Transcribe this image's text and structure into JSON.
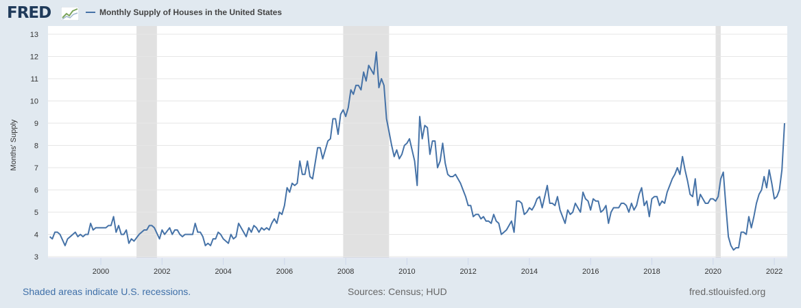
{
  "header": {
    "logo": "FRED",
    "legend_label": "Monthly Supply of Houses in the United States"
  },
  "footer": {
    "recession_note": "Shaded areas indicate U.S. recessions.",
    "sources": "Sources: Census; HUD",
    "url": "fred.stlouisfed.org"
  },
  "chart_data": {
    "type": "line",
    "title": "",
    "xlabel": "",
    "ylabel": "Months' Supply",
    "ylim": [
      3,
      13
    ],
    "xlim": [
      "1998-04",
      "2022-05"
    ],
    "grid": true,
    "legend": "top-left",
    "line_color": "#4572a7",
    "recession_color": "#e1e1e1",
    "y_ticks": [
      "3",
      "4",
      "5",
      "6",
      "7",
      "8",
      "9",
      "10",
      "11",
      "12",
      "13"
    ],
    "x_ticks": [
      "2000",
      "2002",
      "2004",
      "2006",
      "2008",
      "2010",
      "2012",
      "2014",
      "2016",
      "2018",
      "2020",
      "2022"
    ],
    "recessions": [
      [
        "2001-03",
        "2001-11"
      ],
      [
        "2007-12",
        "2009-06"
      ],
      [
        "2020-02",
        "2020-04"
      ]
    ],
    "series": [
      {
        "points": [
          [
            "1998-05",
            3.9
          ],
          [
            "1998-06",
            3.8
          ],
          [
            "1998-07",
            4.1
          ],
          [
            "1998-08",
            4.1
          ],
          [
            "1998-09",
            4.0
          ],
          [
            "1998-11",
            3.5
          ],
          [
            "1998-12",
            3.8
          ],
          [
            "1999-01",
            3.9
          ],
          [
            "1999-03",
            4.1
          ],
          [
            "1999-04",
            3.9
          ],
          [
            "1999-05",
            4.0
          ],
          [
            "1999-06",
            3.9
          ],
          [
            "1999-07",
            4.0
          ],
          [
            "1999-08",
            4.0
          ],
          [
            "1999-09",
            4.5
          ],
          [
            "1999-10",
            4.2
          ],
          [
            "1999-11",
            4.3
          ],
          [
            "2000-03",
            4.3
          ],
          [
            "2000-04",
            4.4
          ],
          [
            "2000-05",
            4.4
          ],
          [
            "2000-06",
            4.8
          ],
          [
            "2000-07",
            4.1
          ],
          [
            "2000-08",
            4.4
          ],
          [
            "2000-09",
            4.0
          ],
          [
            "2000-10",
            4.0
          ],
          [
            "2000-11",
            4.2
          ],
          [
            "2000-12",
            3.6
          ],
          [
            "2001-01",
            3.8
          ],
          [
            "2001-02",
            3.7
          ],
          [
            "2001-04",
            4.0
          ],
          [
            "2001-06",
            4.2
          ],
          [
            "2001-07",
            4.2
          ],
          [
            "2001-08",
            4.4
          ],
          [
            "2001-09",
            4.4
          ],
          [
            "2001-10",
            4.3
          ],
          [
            "2001-12",
            3.8
          ],
          [
            "2002-01",
            4.2
          ],
          [
            "2002-02",
            4.0
          ],
          [
            "2002-04",
            4.3
          ],
          [
            "2002-05",
            4.0
          ],
          [
            "2002-06",
            4.2
          ],
          [
            "2002-07",
            4.2
          ],
          [
            "2002-08",
            4.0
          ],
          [
            "2002-09",
            3.9
          ],
          [
            "2002-10",
            4.0
          ],
          [
            "2003-01",
            4.0
          ],
          [
            "2003-02",
            4.5
          ],
          [
            "2003-03",
            4.1
          ],
          [
            "2003-04",
            4.1
          ],
          [
            "2003-05",
            3.9
          ],
          [
            "2003-06",
            3.5
          ],
          [
            "2003-07",
            3.6
          ],
          [
            "2003-08",
            3.5
          ],
          [
            "2003-09",
            3.8
          ],
          [
            "2003-10",
            3.8
          ],
          [
            "2003-11",
            4.1
          ],
          [
            "2003-12",
            4.0
          ],
          [
            "2004-01",
            3.8
          ],
          [
            "2004-03",
            3.6
          ],
          [
            "2004-04",
            4.0
          ],
          [
            "2004-05",
            3.8
          ],
          [
            "2004-06",
            3.9
          ],
          [
            "2004-07",
            4.5
          ],
          [
            "2004-10",
            3.9
          ],
          [
            "2004-11",
            4.3
          ],
          [
            "2004-12",
            4.1
          ],
          [
            "2005-01",
            4.4
          ],
          [
            "2005-02",
            4.3
          ],
          [
            "2005-03",
            4.1
          ],
          [
            "2005-04",
            4.3
          ],
          [
            "2005-05",
            4.2
          ],
          [
            "2005-06",
            4.3
          ],
          [
            "2005-07",
            4.2
          ],
          [
            "2005-08",
            4.5
          ],
          [
            "2005-09",
            4.7
          ],
          [
            "2005-10",
            4.5
          ],
          [
            "2005-11",
            5.0
          ],
          [
            "2005-12",
            4.9
          ],
          [
            "2006-01",
            5.3
          ],
          [
            "2006-02",
            6.1
          ],
          [
            "2006-03",
            5.9
          ],
          [
            "2006-04",
            6.3
          ],
          [
            "2006-05",
            6.2
          ],
          [
            "2006-06",
            6.3
          ],
          [
            "2006-07",
            7.3
          ],
          [
            "2006-08",
            6.7
          ],
          [
            "2006-09",
            6.7
          ],
          [
            "2006-10",
            7.3
          ],
          [
            "2006-11",
            6.6
          ],
          [
            "2006-12",
            6.5
          ],
          [
            "2007-02",
            7.9
          ],
          [
            "2007-03",
            7.9
          ],
          [
            "2007-04",
            7.4
          ],
          [
            "2007-06",
            8.2
          ],
          [
            "2007-07",
            8.3
          ],
          [
            "2007-08",
            9.2
          ],
          [
            "2007-09",
            9.2
          ],
          [
            "2007-10",
            8.5
          ],
          [
            "2007-11",
            9.4
          ],
          [
            "2007-12",
            9.6
          ],
          [
            "2008-01",
            9.3
          ],
          [
            "2008-02",
            9.7
          ],
          [
            "2008-03",
            10.5
          ],
          [
            "2008-04",
            10.3
          ],
          [
            "2008-05",
            10.7
          ],
          [
            "2008-06",
            10.7
          ],
          [
            "2008-07",
            10.5
          ],
          [
            "2008-08",
            11.3
          ],
          [
            "2008-09",
            10.9
          ],
          [
            "2008-10",
            11.6
          ],
          [
            "2008-11",
            11.4
          ],
          [
            "2008-12",
            11.2
          ],
          [
            "2009-01",
            12.2
          ],
          [
            "2009-02",
            10.6
          ],
          [
            "2009-03",
            11.0
          ],
          [
            "2009-04",
            10.7
          ],
          [
            "2009-05",
            9.2
          ],
          [
            "2009-06",
            8.6
          ],
          [
            "2009-07",
            8.0
          ],
          [
            "2009-08",
            7.5
          ],
          [
            "2009-09",
            7.8
          ],
          [
            "2009-10",
            7.4
          ],
          [
            "2009-11",
            7.6
          ],
          [
            "2009-12",
            8.0
          ],
          [
            "2010-01",
            8.1
          ],
          [
            "2010-02",
            8.3
          ],
          [
            "2010-04",
            7.3
          ],
          [
            "2010-05",
            6.2
          ],
          [
            "2010-06",
            9.3
          ],
          [
            "2010-07",
            8.3
          ],
          [
            "2010-08",
            8.9
          ],
          [
            "2010-09",
            8.8
          ],
          [
            "2010-10",
            7.6
          ],
          [
            "2010-11",
            8.2
          ],
          [
            "2010-12",
            8.2
          ],
          [
            "2011-01",
            7.0
          ],
          [
            "2011-02",
            7.3
          ],
          [
            "2011-03",
            8.1
          ],
          [
            "2011-04",
            7.2
          ],
          [
            "2011-05",
            6.7
          ],
          [
            "2011-06",
            6.6
          ],
          [
            "2011-07",
            6.6
          ],
          [
            "2011-08",
            6.7
          ],
          [
            "2011-09",
            6.5
          ],
          [
            "2011-10",
            6.3
          ],
          [
            "2011-11",
            6.0
          ],
          [
            "2011-12",
            5.7
          ],
          [
            "2012-01",
            5.3
          ],
          [
            "2012-02",
            5.3
          ],
          [
            "2012-03",
            4.8
          ],
          [
            "2012-04",
            4.9
          ],
          [
            "2012-05",
            4.9
          ],
          [
            "2012-06",
            4.7
          ],
          [
            "2012-07",
            4.8
          ],
          [
            "2012-08",
            4.6
          ],
          [
            "2012-09",
            4.6
          ],
          [
            "2012-10",
            4.5
          ],
          [
            "2012-11",
            4.9
          ],
          [
            "2012-12",
            4.6
          ],
          [
            "2013-01",
            4.5
          ],
          [
            "2013-02",
            4.0
          ],
          [
            "2013-03",
            4.1
          ],
          [
            "2013-04",
            4.2
          ],
          [
            "2013-05",
            4.4
          ],
          [
            "2013-06",
            4.6
          ],
          [
            "2013-07",
            4.1
          ],
          [
            "2013-08",
            5.5
          ],
          [
            "2013-09",
            5.5
          ],
          [
            "2013-10",
            5.4
          ],
          [
            "2013-11",
            4.9
          ],
          [
            "2013-12",
            5.0
          ],
          [
            "2014-01",
            5.2
          ],
          [
            "2014-02",
            5.1
          ],
          [
            "2014-03",
            5.3
          ],
          [
            "2014-04",
            5.6
          ],
          [
            "2014-05",
            5.7
          ],
          [
            "2014-06",
            5.2
          ],
          [
            "2014-07",
            5.7
          ],
          [
            "2014-08",
            6.2
          ],
          [
            "2014-09",
            5.4
          ],
          [
            "2014-10",
            5.4
          ],
          [
            "2014-11",
            5.3
          ],
          [
            "2014-12",
            5.7
          ],
          [
            "2015-01",
            5.1
          ],
          [
            "2015-02",
            4.8
          ],
          [
            "2015-03",
            4.5
          ],
          [
            "2015-04",
            5.1
          ],
          [
            "2015-05",
            4.9
          ],
          [
            "2015-06",
            5.0
          ],
          [
            "2015-07",
            5.4
          ],
          [
            "2015-08",
            5.2
          ],
          [
            "2015-09",
            5.0
          ],
          [
            "2015-10",
            5.9
          ],
          [
            "2015-11",
            5.6
          ],
          [
            "2015-12",
            5.5
          ],
          [
            "2016-01",
            5.1
          ],
          [
            "2016-02",
            5.6
          ],
          [
            "2016-03",
            5.5
          ],
          [
            "2016-04",
            5.5
          ],
          [
            "2016-05",
            5.0
          ],
          [
            "2016-06",
            5.1
          ],
          [
            "2016-07",
            5.3
          ],
          [
            "2016-08",
            4.5
          ],
          [
            "2016-09",
            5.0
          ],
          [
            "2016-10",
            5.2
          ],
          [
            "2016-11",
            5.2
          ],
          [
            "2016-12",
            5.2
          ],
          [
            "2017-01",
            5.4
          ],
          [
            "2017-02",
            5.4
          ],
          [
            "2017-03",
            5.3
          ],
          [
            "2017-04",
            5.0
          ],
          [
            "2017-05",
            5.4
          ],
          [
            "2017-06",
            5.1
          ],
          [
            "2017-07",
            5.3
          ],
          [
            "2017-08",
            5.8
          ],
          [
            "2017-09",
            6.1
          ],
          [
            "2017-10",
            5.3
          ],
          [
            "2017-11",
            5.5
          ],
          [
            "2017-12",
            4.8
          ],
          [
            "2018-01",
            5.6
          ],
          [
            "2018-02",
            5.7
          ],
          [
            "2018-03",
            5.7
          ],
          [
            "2018-04",
            5.3
          ],
          [
            "2018-05",
            5.5
          ],
          [
            "2018-06",
            5.4
          ],
          [
            "2018-07",
            5.9
          ],
          [
            "2018-08",
            6.2
          ],
          [
            "2018-09",
            6.5
          ],
          [
            "2018-10",
            6.7
          ],
          [
            "2018-11",
            7.0
          ],
          [
            "2018-12",
            6.7
          ],
          [
            "2019-01",
            7.5
          ],
          [
            "2019-02",
            6.9
          ],
          [
            "2019-03",
            6.4
          ],
          [
            "2019-04",
            5.8
          ],
          [
            "2019-05",
            5.7
          ],
          [
            "2019-06",
            6.5
          ],
          [
            "2019-07",
            5.3
          ],
          [
            "2019-08",
            5.8
          ],
          [
            "2019-09",
            5.6
          ],
          [
            "2019-10",
            5.4
          ],
          [
            "2019-11",
            5.4
          ],
          [
            "2019-12",
            5.6
          ],
          [
            "2020-01",
            5.6
          ],
          [
            "2020-02",
            5.5
          ],
          [
            "2020-03",
            5.7
          ],
          [
            "2020-04",
            6.5
          ],
          [
            "2020-05",
            6.8
          ],
          [
            "2020-06",
            5.3
          ],
          [
            "2020-07",
            3.9
          ],
          [
            "2020-08",
            3.5
          ],
          [
            "2020-09",
            3.3
          ],
          [
            "2020-10",
            3.4
          ],
          [
            "2020-11",
            3.4
          ],
          [
            "2020-12",
            4.1
          ],
          [
            "2021-01",
            4.1
          ],
          [
            "2021-02",
            4.0
          ],
          [
            "2021-03",
            4.8
          ],
          [
            "2021-04",
            4.3
          ],
          [
            "2021-05",
            4.8
          ],
          [
            "2021-06",
            5.4
          ],
          [
            "2021-07",
            5.8
          ],
          [
            "2021-08",
            6.0
          ],
          [
            "2021-09",
            6.6
          ],
          [
            "2021-10",
            6.1
          ],
          [
            "2021-11",
            6.9
          ],
          [
            "2021-12",
            6.3
          ],
          [
            "2022-01",
            5.6
          ],
          [
            "2022-02",
            5.7
          ],
          [
            "2022-03",
            6.0
          ],
          [
            "2022-04",
            6.9
          ],
          [
            "2022-05",
            9.0
          ]
        ]
      }
    ]
  }
}
